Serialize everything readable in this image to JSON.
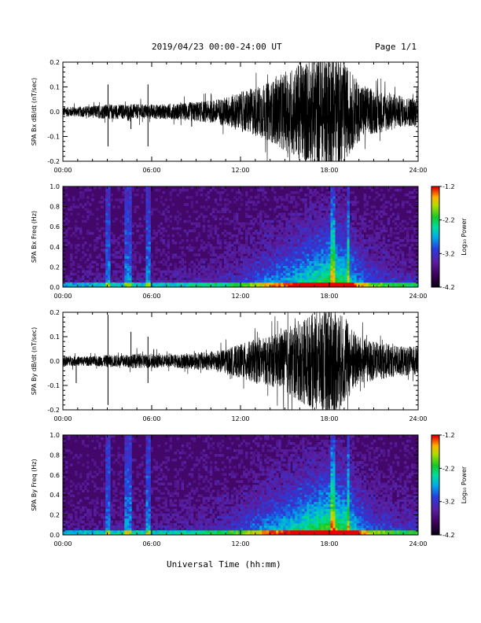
{
  "header": {
    "title": "2019/04/23  00:00-24:00 UT",
    "page": "Page 1/1"
  },
  "xlabel": "Universal Time (hh:mm)",
  "chart_data": [
    {
      "type": "line",
      "ylabel": "SPA Bx dB/dt (nT/sec)",
      "xlim": [
        0,
        24
      ],
      "ylim": [
        -0.2,
        0.2
      ],
      "x_ticks": [
        "00:00",
        "06:00",
        "12:00",
        "18:00",
        "24:00"
      ],
      "y_ticks": [
        "0.2",
        "0.1",
        "0.0",
        "-0.1",
        "-0.2"
      ],
      "y_tick_values": [
        0.2,
        0.1,
        0.0,
        -0.1,
        -0.2
      ],
      "envelope": {
        "x": [
          0,
          1,
          2,
          3,
          4,
          5,
          6,
          7,
          8,
          9,
          10,
          11,
          12,
          13,
          14,
          15,
          16,
          17,
          18,
          19,
          20,
          21,
          22,
          23,
          24
        ],
        "amp": [
          0.02,
          0.02,
          0.025,
          0.03,
          0.03,
          0.03,
          0.03,
          0.03,
          0.035,
          0.04,
          0.045,
          0.06,
          0.08,
          0.1,
          0.12,
          0.16,
          0.2,
          0.22,
          0.25,
          0.2,
          0.12,
          0.09,
          0.08,
          0.06,
          0.06
        ]
      },
      "spikes": [
        {
          "x": 3.05,
          "y": 0.11
        },
        {
          "x": 3.05,
          "y": -0.14
        },
        {
          "x": 5.75,
          "y": 0.11
        },
        {
          "x": 5.75,
          "y": -0.14
        },
        {
          "x": 4.6,
          "y": -0.07
        },
        {
          "x": 8.7,
          "y": -0.06
        }
      ],
      "color": "#000000"
    },
    {
      "type": "heatmap",
      "ylabel": "SPA Bx Freq (Hz)",
      "xlim": [
        0,
        24
      ],
      "ylim": [
        0,
        1.0
      ],
      "x_ticks": [
        "00:00",
        "06:00",
        "12:00",
        "18:00",
        "24:00"
      ],
      "y_ticks": [
        "1.0",
        "0.8",
        "0.6",
        "0.4",
        "0.2",
        "0.0"
      ],
      "y_tick_values": [
        1.0,
        0.8,
        0.6,
        0.4,
        0.2,
        0.0
      ],
      "colorbar": {
        "label": "Log₁₀ Power",
        "ticks": [
          "-1.2",
          "-2.2",
          "-3.2",
          "-4.2"
        ],
        "tick_values": [
          -1.2,
          -2.2,
          -3.2,
          -4.2
        ],
        "range": [
          -4.2,
          -1.2
        ]
      },
      "lines": [
        3.05,
        4.3,
        4.6,
        5.75,
        18.25,
        19.25
      ],
      "activity": [
        0.1,
        0.1,
        0.12,
        0.15,
        0.15,
        0.15,
        0.15,
        0.15,
        0.17,
        0.2,
        0.22,
        0.25,
        0.3,
        0.4,
        0.5,
        0.55,
        0.65,
        0.75,
        0.85,
        0.8,
        0.5,
        0.35,
        0.3,
        0.25,
        0.25
      ]
    },
    {
      "type": "line",
      "ylabel": "SPA By dB/dt (nT/sec)",
      "xlim": [
        0,
        24
      ],
      "ylim": [
        -0.2,
        0.2
      ],
      "x_ticks": [
        "00:00",
        "06:00",
        "12:00",
        "18:00",
        "24:00"
      ],
      "y_ticks": [
        "0.2",
        "0.1",
        "0.0",
        "-0.1",
        "-0.2"
      ],
      "y_tick_values": [
        0.2,
        0.1,
        0.0,
        -0.1,
        -0.2
      ],
      "envelope": {
        "x": [
          0,
          1,
          2,
          3,
          4,
          5,
          6,
          7,
          8,
          9,
          10,
          11,
          12,
          13,
          14,
          15,
          16,
          17,
          18,
          19,
          20,
          21,
          22,
          23,
          24
        ],
        "amp": [
          0.02,
          0.02,
          0.02,
          0.025,
          0.025,
          0.03,
          0.03,
          0.025,
          0.03,
          0.035,
          0.04,
          0.05,
          0.07,
          0.09,
          0.1,
          0.13,
          0.17,
          0.2,
          0.24,
          0.18,
          0.1,
          0.08,
          0.07,
          0.06,
          0.06
        ]
      },
      "spikes": [
        {
          "x": 3.05,
          "y": 0.19
        },
        {
          "x": 3.05,
          "y": -0.18
        },
        {
          "x": 4.6,
          "y": 0.12
        },
        {
          "x": 5.75,
          "y": 0.1
        },
        {
          "x": 5.75,
          "y": -0.09
        },
        {
          "x": 0.9,
          "y": -0.09
        }
      ],
      "color": "#000000"
    },
    {
      "type": "heatmap",
      "ylabel": "SPA By Freq (Hz)",
      "xlim": [
        0,
        24
      ],
      "ylim": [
        0,
        1.0
      ],
      "x_ticks": [
        "00:00",
        "06:00",
        "12:00",
        "18:00",
        "24:00"
      ],
      "y_ticks": [
        "1.0",
        "0.8",
        "0.6",
        "0.4",
        "0.2",
        "0.0"
      ],
      "y_tick_values": [
        1.0,
        0.8,
        0.6,
        0.4,
        0.2,
        0.0
      ],
      "colorbar": {
        "label": "Log₁₀ Power",
        "ticks": [
          "-1.2",
          "-2.2",
          "-3.2",
          "-4.2"
        ],
        "tick_values": [
          -1.2,
          -2.2,
          -3.2,
          -4.2
        ],
        "range": [
          -4.2,
          -1.2
        ]
      },
      "lines": [
        3.05,
        4.3,
        4.6,
        5.75,
        18.25,
        19.25
      ],
      "activity": [
        0.12,
        0.12,
        0.14,
        0.17,
        0.17,
        0.17,
        0.17,
        0.17,
        0.19,
        0.22,
        0.25,
        0.28,
        0.35,
        0.45,
        0.55,
        0.62,
        0.72,
        0.82,
        0.9,
        0.85,
        0.55,
        0.4,
        0.35,
        0.3,
        0.3
      ]
    }
  ]
}
